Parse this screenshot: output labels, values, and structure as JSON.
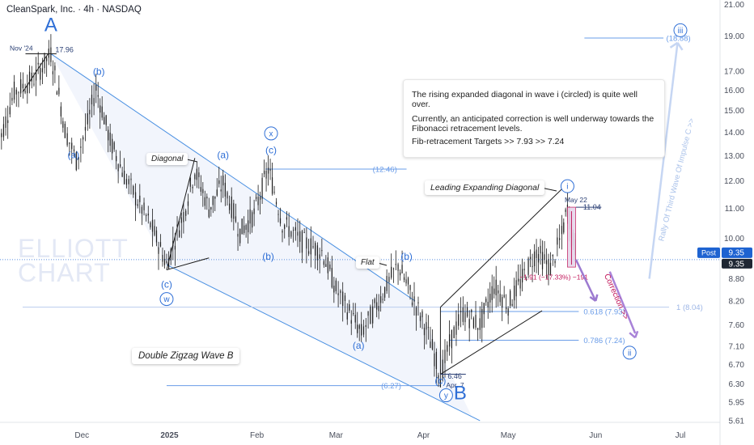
{
  "chart_title": "CleanSpark, Inc. · 4h · NASDAQ",
  "watermark": "ELLIOTT CHART",
  "colors": {
    "wave_label": "#2f6fd6",
    "trend_line": "#4a90e2",
    "fib_line": "#6a9ce8",
    "candle": "#1c1c1c",
    "pink": "#c2185b",
    "price_tag": "#1e63d1"
  },
  "chart_data": {
    "type": "candlestick",
    "timeframe": "4h",
    "y_axis": {
      "scale": "log",
      "range": [
        5.58,
        21.3
      ],
      "tick_labels": [
        "21.00",
        "19.00",
        "17.00",
        "16.00",
        "15.00",
        "14.00",
        "13.00",
        "12.00",
        "11.00",
        "10.00",
        "9.35",
        "8.80",
        "8.20",
        "7.60",
        "7.10",
        "6.70",
        "6.30",
        "5.95",
        "5.61"
      ]
    },
    "x_axis": {
      "tick_labels": [
        "Dec",
        "2025",
        "Feb",
        "Mar",
        "Apr",
        "May",
        "Jun",
        "Jul"
      ]
    },
    "price_path": [
      [
        "2024-11-01",
        13.2
      ],
      [
        "2024-11-07",
        15.9
      ],
      [
        "2024-11-14",
        16.6
      ],
      [
        "2024-11-20",
        17.96
      ],
      [
        "2024-11-25",
        14.1
      ],
      [
        "2024-11-29",
        12.8
      ],
      [
        "2024-12-03",
        14.4
      ],
      [
        "2024-12-06",
        16.1
      ],
      [
        "2024-12-11",
        13.6
      ],
      [
        "2024-12-16",
        12.2
      ],
      [
        "2024-12-20",
        11.4
      ],
      [
        "2024-12-26",
        10.3
      ],
      [
        "2024-12-31",
        9.2
      ],
      [
        "2025-01-06",
        10.8
      ],
      [
        "2025-01-10",
        12.4
      ],
      [
        "2025-01-15",
        11.0
      ],
      [
        "2025-01-20",
        11.9
      ],
      [
        "2025-01-26",
        10.2
      ],
      [
        "2025-01-31",
        10.8
      ],
      [
        "2025-02-05",
        12.46
      ],
      [
        "2025-02-10",
        10.5
      ],
      [
        "2025-02-17",
        9.9
      ],
      [
        "2025-02-24",
        9.6
      ],
      [
        "2025-03-01",
        8.5
      ],
      [
        "2025-03-05",
        8.0
      ],
      [
        "2025-03-10",
        7.4
      ],
      [
        "2025-03-14",
        7.9
      ],
      [
        "2025-03-19",
        8.6
      ],
      [
        "2025-03-23",
        9.2
      ],
      [
        "2025-03-28",
        8.3
      ],
      [
        "2025-04-02",
        7.5
      ],
      [
        "2025-04-07",
        6.46
      ],
      [
        "2025-04-11",
        7.3
      ],
      [
        "2025-04-15",
        7.9
      ],
      [
        "2025-04-21",
        7.6
      ],
      [
        "2025-04-26",
        8.6
      ],
      [
        "2025-05-01",
        8.1
      ],
      [
        "2025-05-06",
        8.8
      ],
      [
        "2025-05-11",
        9.6
      ],
      [
        "2025-05-16",
        9.1
      ],
      [
        "2025-05-20",
        10.1
      ],
      [
        "2025-05-22",
        11.04
      ],
      [
        "2025-05-24",
        9.9
      ],
      [
        "2025-05-26",
        9.35
      ]
    ],
    "last_price": "9.35",
    "last_price_tag": "Post",
    "wave_labels": [
      {
        "text": "A",
        "date": "2024-11-20",
        "price": 19.3
      },
      {
        "text": "B",
        "date": "2025-04-14",
        "price": 6.0
      },
      {
        "text": "(b)",
        "date": "2024-12-07",
        "price": 16.8
      },
      {
        "text": "(a)",
        "date": "2024-11-28",
        "price": 12.9
      },
      {
        "text": "(a)",
        "date": "2025-01-20",
        "price": 12.9
      },
      {
        "text": "(c)",
        "date": "2025-02-06",
        "price": 13.1
      },
      {
        "text": "(b)",
        "date": "2025-02-05",
        "price": 9.35
      },
      {
        "text": "(c)",
        "date": "2024-12-31",
        "price": 8.55
      },
      {
        "text": "(a)",
        "date": "2025-03-09",
        "price": 7.05
      },
      {
        "text": "(b)",
        "date": "2025-03-26",
        "price": 9.35
      },
      {
        "text": "(c)",
        "date": "2025-04-07",
        "price": 6.3
      }
    ],
    "circled_labels": [
      {
        "text": "x",
        "date": "2025-02-06",
        "price": 13.95
      },
      {
        "text": "w",
        "date": "2024-12-31",
        "price": 8.25
      },
      {
        "text": "y",
        "date": "2025-04-09",
        "price": 6.08
      },
      {
        "text": "i",
        "date": "2025-05-22",
        "price": 11.8
      },
      {
        "text": "ii",
        "date": "2025-06-13",
        "price": 6.96
      },
      {
        "text": "iii",
        "date": "2025-07-01",
        "price": 19.35
      }
    ],
    "horizontal_levels": [
      {
        "label": "(18.88)",
        "value": 18.88
      },
      {
        "label": "(12.46)",
        "value": 12.46
      },
      {
        "label": "0.618 (7.93)",
        "value": 7.93
      },
      {
        "label": "0.786 (7.24)",
        "value": 7.24
      },
      {
        "label": "(6.27)",
        "value": 6.27
      },
      {
        "label": "1 (8.04)",
        "value": 8.04
      }
    ],
    "price_labels": [
      {
        "text": "17.96",
        "value": 17.96
      },
      {
        "text": "11.04",
        "value": 11.04
      },
      {
        "text": "6.46",
        "value": 6.46
      }
    ],
    "date_labels": [
      "Nov '24",
      "May 22",
      "Apr. 7"
    ],
    "measure": "−1.91 (−17.33%) −191",
    "annotations": {
      "diagonal": "Diagonal",
      "flat": "Flat",
      "leading": "Leading Expanding Diagonal",
      "double_zigzag": "Double Zigzag Wave B",
      "rally": "Rally Of Third Wave Of Impulse C >>",
      "correction": "Correction >>"
    }
  },
  "note": {
    "line1": "The rising expanded diagonal in wave i (circled) is quite well over.",
    "line2": "Currently, an anticipated correction is well underway towards the Fibonacci retracement levels.",
    "line3": "Fib-retracement Targets >> 7.93  >>  7.24"
  }
}
